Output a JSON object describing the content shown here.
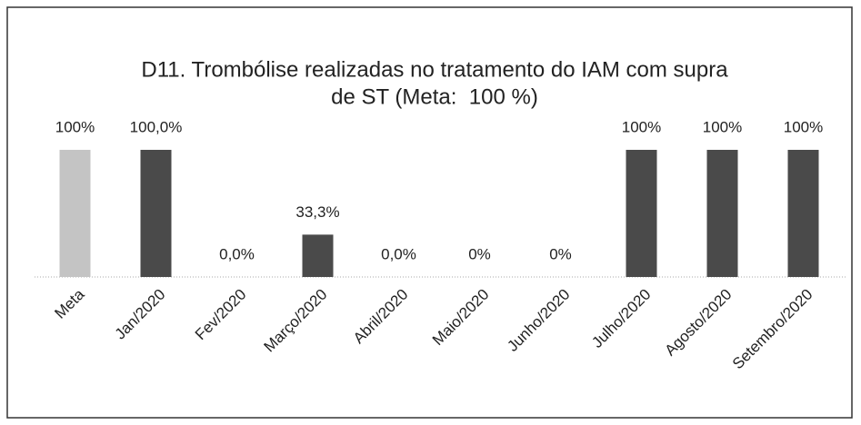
{
  "chart_data": {
    "type": "bar",
    "title": [
      "D11. Trombólise realizadas no tratamento do IAM com supra",
      "de ST (Meta:  100 %)"
    ],
    "categories": [
      "Meta",
      "Jan/2020",
      "Fev/2020",
      "Março/2020",
      "Abril/2020",
      "Maio/2020",
      "Junho/2020",
      "Julho/2020",
      "Agosto/2020",
      "Setembro/2020"
    ],
    "values": [
      100,
      100,
      0,
      33.3,
      0,
      0,
      0,
      100,
      100,
      100
    ],
    "value_labels": [
      "100%",
      "100,0%",
      "0,0%",
      "33,3%",
      "0,0%",
      "0%",
      "0%",
      "100%",
      "100%",
      "100%"
    ],
    "colors": [
      "#c4c4c4",
      "#4a4a4a",
      "#4a4a4a",
      "#4a4a4a",
      "#4a4a4a",
      "#4a4a4a",
      "#4a4a4a",
      "#4a4a4a",
      "#4a4a4a",
      "#4a4a4a"
    ]
  }
}
